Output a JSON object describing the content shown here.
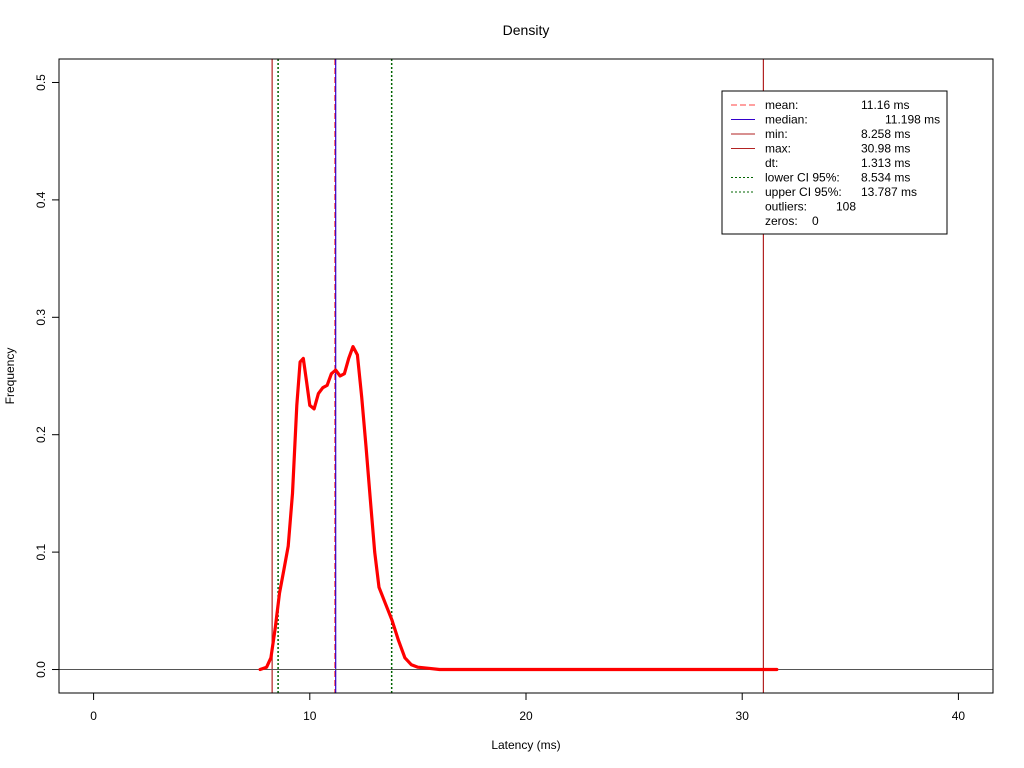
{
  "chart_data": {
    "type": "line",
    "title": "Density",
    "xlabel": "Latency (ms)",
    "ylabel": "Frequency",
    "xlim": [
      -1.6,
      41.6
    ],
    "ylim": [
      -0.02,
      0.52
    ],
    "xticks": [
      0,
      10,
      20,
      30,
      40
    ],
    "xtick_labels": [
      "0",
      "10",
      "20",
      "30",
      "40"
    ],
    "yticks": [
      0.0,
      0.1,
      0.2,
      0.3,
      0.4,
      0.5
    ],
    "ytick_labels": [
      "0.0",
      "0.1",
      "0.2",
      "0.3",
      "0.4",
      "0.5"
    ],
    "grid": false,
    "legend_position": "top-right",
    "series": [
      {
        "color": "#ff0000",
        "x": [
          7.7,
          8.0,
          8.2,
          8.4,
          8.6,
          8.8,
          9.0,
          9.2,
          9.4,
          9.55,
          9.7,
          9.85,
          10.0,
          10.2,
          10.4,
          10.6,
          10.8,
          11.0,
          11.2,
          11.4,
          11.6,
          11.8,
          12.0,
          12.2,
          12.4,
          12.6,
          12.8,
          13.0,
          13.2,
          13.5,
          13.8,
          14.1,
          14.4,
          14.7,
          15.0,
          15.5,
          16.0,
          17.0,
          20.0,
          25.0,
          30.0,
          31.6
        ],
        "y": [
          0.0,
          0.002,
          0.01,
          0.035,
          0.065,
          0.085,
          0.105,
          0.15,
          0.225,
          0.262,
          0.265,
          0.245,
          0.225,
          0.222,
          0.235,
          0.24,
          0.242,
          0.252,
          0.255,
          0.25,
          0.252,
          0.265,
          0.275,
          0.268,
          0.232,
          0.19,
          0.145,
          0.1,
          0.07,
          0.056,
          0.042,
          0.025,
          0.01,
          0.004,
          0.002,
          0.001,
          0.0,
          0.0,
          0.0,
          0.0,
          0.0,
          0.0
        ]
      }
    ],
    "vlines": [
      {
        "x": 11.16,
        "color": "#ff4040",
        "dash": "dashed"
      },
      {
        "x": 11.198,
        "color": "#3300cc",
        "dash": "solid"
      },
      {
        "x": 8.258,
        "color": "#b22222",
        "dash": "solid"
      },
      {
        "x": 30.98,
        "color": "#b22222",
        "dash": "solid"
      },
      {
        "x": 8.534,
        "color": "#006400",
        "dash": "dotted"
      },
      {
        "x": 13.787,
        "color": "#006400",
        "dash": "dotted"
      }
    ],
    "hline": {
      "y": 0.0,
      "color": "#555555"
    },
    "legend": [
      {
        "label": "mean:",
        "value": "11.16 ms",
        "color": "#ff4040",
        "dash": "dashed"
      },
      {
        "label": "median:",
        "value": "11.198 ms",
        "color": "#3300cc",
        "dash": "solid"
      },
      {
        "label": "min:",
        "value": "8.258 ms",
        "color": "#b22222",
        "dash": "solid"
      },
      {
        "label": "max:",
        "value": "30.98 ms",
        "color": "#b22222",
        "dash": "solid"
      },
      {
        "label": "dt:",
        "value": "1.313 ms",
        "color": "",
        "dash": "none"
      },
      {
        "label": "lower CI 95%:",
        "value": "8.534 ms",
        "color": "#006400",
        "dash": "dotted"
      },
      {
        "label": "upper CI 95%:",
        "value": "13.787 ms",
        "color": "#006400",
        "dash": "dotted"
      },
      {
        "label": "outliers:",
        "value": "108",
        "color": "",
        "dash": "none"
      },
      {
        "label": "zeros:",
        "value": "0",
        "color": "",
        "dash": "none"
      }
    ]
  }
}
